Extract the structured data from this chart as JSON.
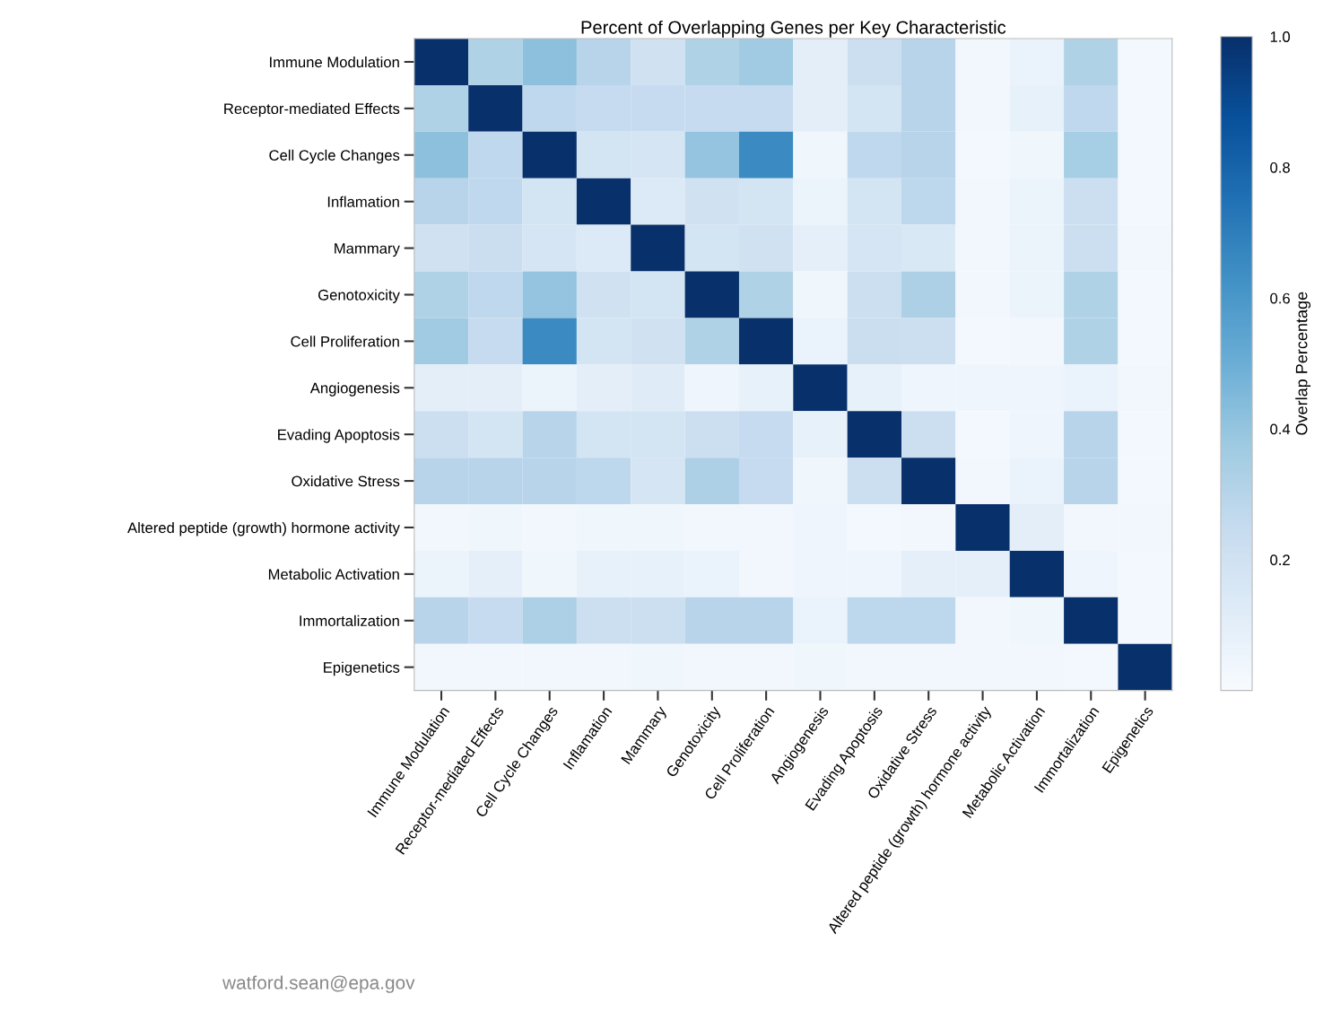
{
  "chart_data": {
    "type": "heatmap",
    "title": "Percent of Overlapping Genes per Key Characteristic",
    "clabel": "Overlap Percentage",
    "categories": [
      "Immune Modulation",
      "Receptor-mediated Effects",
      "Cell Cycle Changes",
      "Inflamation",
      "Mammary",
      "Genotoxicity",
      "Cell Proliferation",
      "Angiogenesis",
      "Evading Apoptosis",
      "Oxidative Stress",
      "Altered peptide (growth) hormone activity",
      "Metabolic Activation",
      "Immortalization",
      "Epigenetics"
    ],
    "y_categories": [
      "Immune Modulation",
      "Receptor-mediated Effects",
      "Cell Cycle Changes",
      "Inflamation",
      "Mammary",
      "Genotoxicity",
      "Cell Proliferation",
      "Angiogenesis",
      "Evading Apoptosis",
      "Oxidative Stress",
      "Altered peptide (growth) hormone activity",
      "Metabolic Activation",
      "Immortalization",
      "Epigenetics"
    ],
    "cells": [
      [
        1,
        0.32,
        0.42,
        0.3,
        0.2,
        0.32,
        0.37,
        0.1,
        0.22,
        0.3,
        0.03,
        0.07,
        0.32,
        0.02
      ],
      [
        0.32,
        1,
        0.27,
        0.25,
        0.25,
        0.25,
        0.25,
        0.1,
        0.18,
        0.3,
        0.03,
        0.08,
        0.27,
        0.02
      ],
      [
        0.42,
        0.27,
        1,
        0.18,
        0.17,
        0.4,
        0.65,
        0.04,
        0.27,
        0.3,
        0.02,
        0.04,
        0.35,
        0.02
      ],
      [
        0.3,
        0.27,
        0.18,
        1,
        0.14,
        0.2,
        0.18,
        0.06,
        0.18,
        0.28,
        0.03,
        0.06,
        0.22,
        0.02
      ],
      [
        0.2,
        0.23,
        0.17,
        0.14,
        1,
        0.18,
        0.2,
        0.09,
        0.17,
        0.15,
        0.03,
        0.06,
        0.22,
        0.03
      ],
      [
        0.32,
        0.27,
        0.4,
        0.2,
        0.18,
        1,
        0.32,
        0.04,
        0.22,
        0.33,
        0.03,
        0.06,
        0.32,
        0.02
      ],
      [
        0.37,
        0.25,
        0.65,
        0.18,
        0.2,
        0.32,
        1,
        0.07,
        0.23,
        0.22,
        0.02,
        0.03,
        0.32,
        0.02
      ],
      [
        0.1,
        0.1,
        0.06,
        0.1,
        0.12,
        0.05,
        0.08,
        1,
        0.08,
        0.05,
        0.05,
        0.05,
        0.07,
        0.03
      ],
      [
        0.22,
        0.18,
        0.3,
        0.18,
        0.18,
        0.22,
        0.25,
        0.08,
        1,
        0.22,
        0.02,
        0.05,
        0.3,
        0.02
      ],
      [
        0.3,
        0.3,
        0.3,
        0.28,
        0.17,
        0.33,
        0.25,
        0.04,
        0.22,
        1,
        0.03,
        0.07,
        0.3,
        0.02
      ],
      [
        0.03,
        0.04,
        0.03,
        0.04,
        0.04,
        0.03,
        0.03,
        0.05,
        0.02,
        0.03,
        1,
        0.1,
        0.03,
        0.03
      ],
      [
        0.06,
        0.09,
        0.04,
        0.08,
        0.08,
        0.07,
        0.03,
        0.05,
        0.05,
        0.09,
        0.09,
        1,
        0.05,
        0.02
      ],
      [
        0.3,
        0.25,
        0.33,
        0.22,
        0.22,
        0.3,
        0.3,
        0.07,
        0.28,
        0.28,
        0.03,
        0.04,
        1,
        0.02
      ],
      [
        0.03,
        0.03,
        0.03,
        0.03,
        0.04,
        0.03,
        0.03,
        0.04,
        0.03,
        0.03,
        0.03,
        0.03,
        0.02,
        1
      ]
    ],
    "clim": [
      0,
      1
    ],
    "cticks": [
      0.2,
      0.4,
      0.6,
      0.8,
      {
        "value": 1,
        "label": "1.0"
      }
    ],
    "annotations": [
      "watford.sean@epa.gov"
    ]
  }
}
